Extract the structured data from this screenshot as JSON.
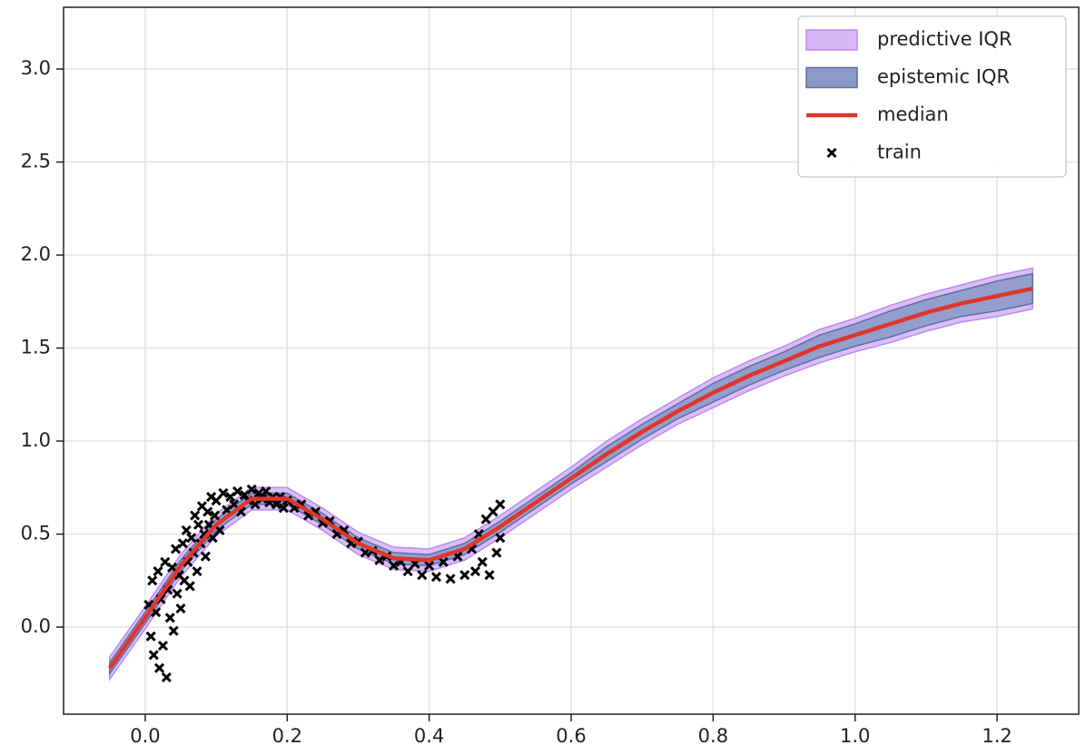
{
  "chart_data": {
    "type": "line",
    "x": [
      -0.05,
      0,
      0.05,
      0.1,
      0.15,
      0.2,
      0.25,
      0.3,
      0.35,
      0.4,
      0.45,
      0.5,
      0.55,
      0.6,
      0.65,
      0.7,
      0.75,
      0.8,
      0.85,
      0.9,
      0.95,
      1.0,
      1.05,
      1.1,
      1.15,
      1.2,
      1.25
    ],
    "series": [
      {
        "name": "predictive IQR",
        "kind": "band",
        "color": "#d7b6f6",
        "edge": "#b98cf0",
        "lower": [
          -0.28,
          -0.01,
          0.27,
          0.49,
          0.63,
          0.63,
          0.52,
          0.39,
          0.31,
          0.3,
          0.36,
          0.48,
          0.61,
          0.74,
          0.86,
          0.98,
          1.09,
          1.18,
          1.27,
          1.35,
          1.42,
          1.48,
          1.53,
          1.59,
          1.64,
          1.67,
          1.71
        ],
        "upper": [
          -0.16,
          0.11,
          0.39,
          0.61,
          0.75,
          0.75,
          0.64,
          0.51,
          0.43,
          0.42,
          0.48,
          0.6,
          0.73,
          0.86,
          1.0,
          1.12,
          1.23,
          1.34,
          1.43,
          1.51,
          1.6,
          1.66,
          1.73,
          1.79,
          1.84,
          1.89,
          1.93
        ]
      },
      {
        "name": "epistemic IQR",
        "kind": "band",
        "color": "#8b9ac6",
        "edge": "#5d6ea9",
        "lower": [
          -0.25,
          0.02,
          0.3,
          0.52,
          0.66,
          0.66,
          0.55,
          0.42,
          0.34,
          0.33,
          0.39,
          0.51,
          0.64,
          0.77,
          0.89,
          1.01,
          1.12,
          1.21,
          1.3,
          1.38,
          1.45,
          1.51,
          1.56,
          1.62,
          1.67,
          1.7,
          1.74
        ],
        "upper": [
          -0.19,
          0.08,
          0.36,
          0.58,
          0.72,
          0.72,
          0.61,
          0.48,
          0.4,
          0.39,
          0.45,
          0.57,
          0.7,
          0.83,
          0.97,
          1.09,
          1.2,
          1.31,
          1.4,
          1.48,
          1.57,
          1.63,
          1.7,
          1.76,
          1.81,
          1.86,
          1.9
        ]
      },
      {
        "name": "median",
        "kind": "line",
        "color": "#e0352c",
        "values": [
          -0.22,
          0.05,
          0.33,
          0.55,
          0.69,
          0.69,
          0.58,
          0.45,
          0.37,
          0.36,
          0.42,
          0.54,
          0.67,
          0.8,
          0.93,
          1.05,
          1.16,
          1.26,
          1.35,
          1.43,
          1.51,
          1.57,
          1.63,
          1.69,
          1.74,
          1.78,
          1.82
        ]
      },
      {
        "name": "train",
        "kind": "scatter",
        "color": "#000000",
        "x": [
          0.005,
          0.008,
          0.01,
          0.012,
          0.015,
          0.018,
          0.02,
          0.022,
          0.025,
          0.028,
          0.03,
          0.032,
          0.035,
          0.038,
          0.04,
          0.043,
          0.045,
          0.048,
          0.05,
          0.053,
          0.055,
          0.058,
          0.06,
          0.063,
          0.065,
          0.068,
          0.07,
          0.073,
          0.075,
          0.078,
          0.08,
          0.083,
          0.085,
          0.088,
          0.09,
          0.093,
          0.095,
          0.098,
          0.1,
          0.105,
          0.11,
          0.115,
          0.12,
          0.125,
          0.13,
          0.135,
          0.14,
          0.145,
          0.15,
          0.155,
          0.16,
          0.165,
          0.17,
          0.175,
          0.18,
          0.185,
          0.19,
          0.195,
          0.2,
          0.21,
          0.22,
          0.23,
          0.24,
          0.25,
          0.26,
          0.27,
          0.28,
          0.29,
          0.3,
          0.31,
          0.32,
          0.33,
          0.34,
          0.35,
          0.36,
          0.37,
          0.38,
          0.39,
          0.4,
          0.41,
          0.42,
          0.43,
          0.44,
          0.45,
          0.46,
          0.465,
          0.47,
          0.475,
          0.48,
          0.485,
          0.49,
          0.495,
          0.5,
          0.5
        ],
        "y": [
          0.12,
          -0.05,
          0.25,
          -0.15,
          0.08,
          0.3,
          -0.22,
          0.15,
          -0.1,
          0.35,
          -0.27,
          0.2,
          0.05,
          0.32,
          -0.02,
          0.42,
          0.18,
          0.28,
          0.1,
          0.45,
          0.25,
          0.52,
          0.35,
          0.22,
          0.48,
          0.4,
          0.6,
          0.3,
          0.55,
          0.45,
          0.65,
          0.5,
          0.38,
          0.62,
          0.55,
          0.7,
          0.48,
          0.6,
          0.68,
          0.52,
          0.72,
          0.63,
          0.7,
          0.66,
          0.73,
          0.62,
          0.71,
          0.68,
          0.74,
          0.66,
          0.72,
          0.69,
          0.73,
          0.67,
          0.7,
          0.66,
          0.7,
          0.64,
          0.68,
          0.64,
          0.66,
          0.6,
          0.62,
          0.56,
          0.57,
          0.5,
          0.52,
          0.45,
          0.46,
          0.4,
          0.41,
          0.36,
          0.38,
          0.33,
          0.35,
          0.3,
          0.34,
          0.28,
          0.33,
          0.27,
          0.35,
          0.26,
          0.38,
          0.28,
          0.42,
          0.3,
          0.5,
          0.35,
          0.58,
          0.28,
          0.62,
          0.4,
          0.66,
          0.48
        ]
      }
    ],
    "xlim": [
      -0.115,
      1.315
    ],
    "ylim": [
      -0.468,
      3.332
    ],
    "xticks": [
      {
        "value": 0,
        "label": "0.0"
      },
      0.2,
      0.4,
      0.6,
      0.8,
      {
        "value": 1,
        "label": "1.0"
      },
      1.2
    ],
    "yticks": [
      {
        "value": 0,
        "label": "0.0"
      },
      0.5,
      {
        "value": 1,
        "label": "1.0"
      },
      1.5,
      {
        "value": 2,
        "label": "2.0"
      },
      2.5,
      {
        "value": 3,
        "label": "3.0"
      }
    ],
    "grid": true,
    "legend": "upper right"
  }
}
